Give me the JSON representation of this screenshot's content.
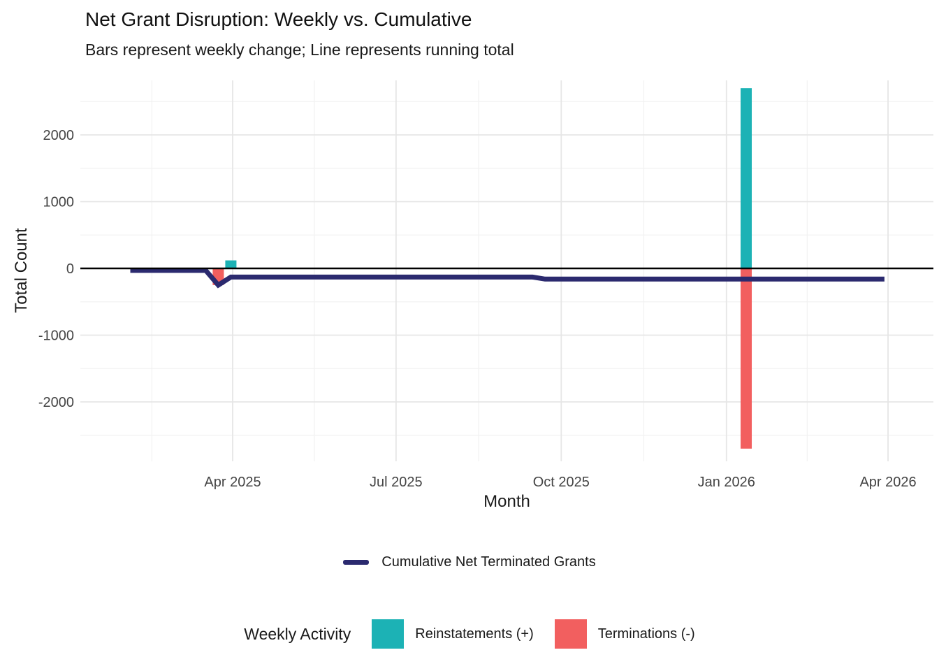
{
  "header": {
    "title": "Net Grant Disruption: Weekly vs. Cumulative",
    "subtitle": "Bars represent weekly change; Line represents running total"
  },
  "chart_data": {
    "type": "combo-bar-line",
    "title": "Net Grant Disruption: Weekly vs. Cumulative",
    "subtitle": "Bars represent weekly change; Line represents running total",
    "xlabel": "Month",
    "ylabel": "Total Count",
    "grid": "on",
    "x_axis": {
      "ticks": [
        {
          "label": "Apr 2025",
          "day": 90
        },
        {
          "label": "Jul 2025",
          "day": 181
        },
        {
          "label": "Oct 2025",
          "day": 273
        },
        {
          "label": "Jan 2026",
          "day": 365
        },
        {
          "label": "Apr 2026",
          "day": 455
        }
      ],
      "minor_days": [
        45,
        135.5,
        227,
        319,
        410,
        500
      ],
      "epoch": "2025-01-01"
    },
    "y_axis": {
      "ticks": [
        {
          "label": "2000",
          "value": 2000
        },
        {
          "label": "1000",
          "value": 1000
        },
        {
          "label": "0",
          "value": 0
        },
        {
          "label": "-1000",
          "value": -1000
        },
        {
          "label": "-2000",
          "value": -2000
        }
      ],
      "minor_values": [
        2500,
        1500,
        500,
        -500,
        -1500,
        -2500
      ],
      "range": [
        -2830,
        2830
      ]
    },
    "zero_line_value": 0,
    "bar_series": [
      {
        "name": "Reinstatements (+)",
        "color": "#1CB2B5",
        "points": [
          {
            "date": "2025-03-31",
            "value": 120
          },
          {
            "date": "2026-01-12",
            "value": 2700
          }
        ]
      },
      {
        "name": "Terminations (-)",
        "color": "#F25F5F",
        "points": [
          {
            "date": "2025-03-24",
            "value": -250
          },
          {
            "date": "2026-01-12",
            "value": -2700
          }
        ]
      }
    ],
    "line_series": {
      "name": "Cumulative Net Terminated Grants",
      "color": "#2B2A6F",
      "points": [
        [
          "2025-02-03",
          -30
        ],
        [
          "2025-03-17",
          -30
        ],
        [
          "2025-03-24",
          -250
        ],
        [
          "2025-03-31",
          -130
        ],
        [
          "2025-09-15",
          -130
        ],
        [
          "2025-09-22",
          -160
        ],
        [
          "2026-03-30",
          -160
        ]
      ]
    },
    "colors": {
      "line": "#2B2A6F",
      "reinstatement": "#1CB2B5",
      "termination": "#F25F5F",
      "zero_line": "#000000",
      "grid_major": "#E6E6E6",
      "grid_minor": "#F2F2F2"
    }
  },
  "legend_line": {
    "label": "Cumulative Net Terminated Grants"
  },
  "legend_bars": {
    "title": "Weekly Activity",
    "items": [
      {
        "label": "Reinstatements (+)",
        "color": "#1CB2B5"
      },
      {
        "label": "Terminations (-)",
        "color": "#F25F5F"
      }
    ]
  }
}
